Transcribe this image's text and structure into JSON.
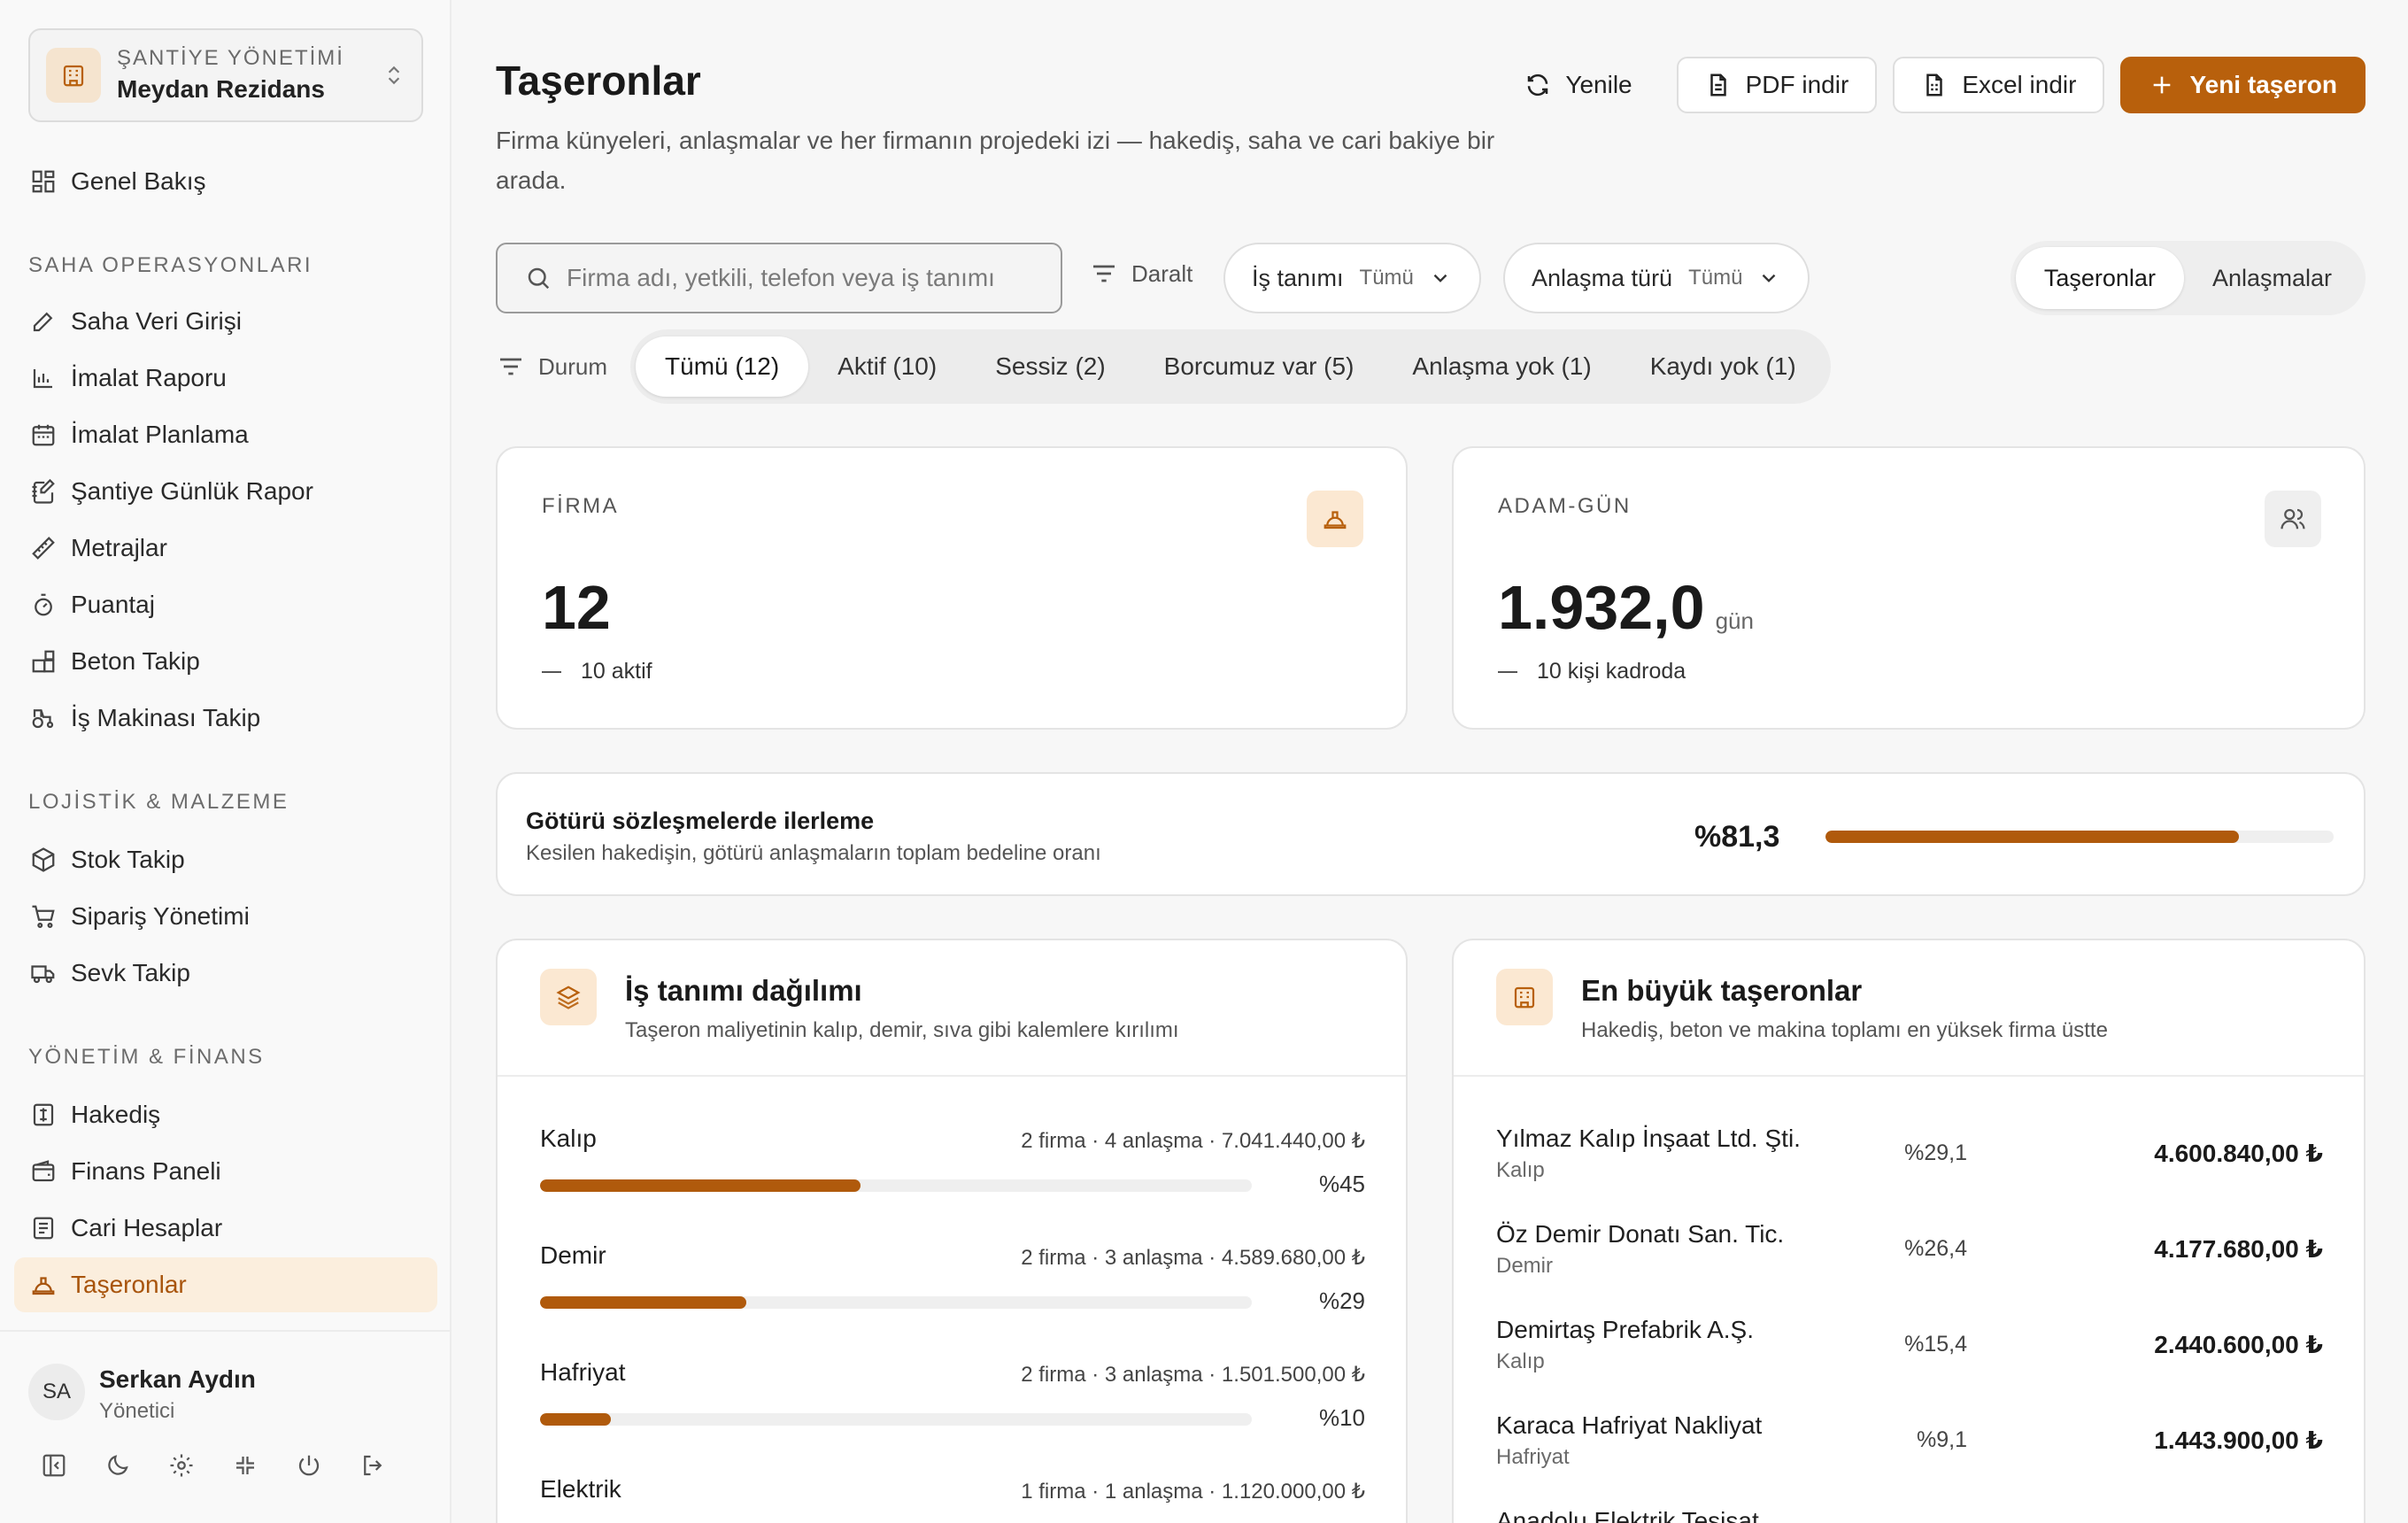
{
  "project": {
    "kicker": "ŞANTİYE YÖNETİMİ",
    "name": "Meydan Rezidans"
  },
  "nav": {
    "overview": "Genel Bakış",
    "section_ops": "SAHA OPERASYONLARI",
    "ops": [
      "Saha Veri Girişi",
      "İmalat Raporu",
      "İmalat Planlama",
      "Şantiye Günlük Rapor",
      "Metrajlar",
      "Puantaj",
      "Beton Takip",
      "İş Makinası Takip"
    ],
    "section_log": "LOJİSTİK & MALZEME",
    "log": [
      "Stok Takip",
      "Sipariş Yönetimi",
      "Sevk Takip"
    ],
    "section_fin": "YÖNETİM & FİNANS",
    "fin": [
      "Hakediş",
      "Finans Paneli",
      "Cari Hesaplar",
      "Taşeronlar"
    ]
  },
  "user": {
    "initials": "SA",
    "name": "Serkan Aydın",
    "role": "Yönetici"
  },
  "header": {
    "title": "Taşeronlar",
    "description": "Firma künyeleri, anlaşmalar ve her firmanın projedeki izi — hakediş, saha ve cari bakiye bir arada.",
    "refresh": "Yenile",
    "pdf": "PDF indir",
    "excel": "Excel indir",
    "new": "Yeni taşeron"
  },
  "filters": {
    "search_placeholder": "Firma adı, yetkili, telefon veya iş tanımı",
    "narrow": "Daralt",
    "job_label": "İş tanımı",
    "job_value": "Tümü",
    "deal_label": "Anlaşma türü",
    "deal_value": "Tümü",
    "view_tabs": [
      "Taşeronlar",
      "Anlaşmalar"
    ],
    "status_label": "Durum",
    "status_tabs": [
      "Tümü (12)",
      "Aktif (10)",
      "Sessiz (2)",
      "Borcumuz var (5)",
      "Anlaşma yok (1)",
      "Kaydı yok (1)"
    ]
  },
  "kpis": {
    "firms": {
      "kicker": "FİRMA",
      "value": "12",
      "sub": "10 aktif"
    },
    "mandays": {
      "kicker": "ADAM-GÜN",
      "value": "1.932,0",
      "unit": "gün",
      "sub": "10 kişi kadroda"
    }
  },
  "progress": {
    "title": "Götürü sözleşmelerde ilerleme",
    "subtitle": "Kesilen hakedişin, götürü anlaşmaların toplam bedeline oranı",
    "percent_label": "%81,3",
    "fraction": 0.813
  },
  "distribution": {
    "title": "İş tanımı dağılımı",
    "subtitle": "Taşeron maliyetinin kalıp, demir, sıva gibi kalemlere kırılımı",
    "rows": [
      {
        "name": "Kalıp",
        "meta": "2 firma · 4 anlaşma · 7.041.440,00 ₺",
        "pct_label": "%45",
        "fraction": 0.45
      },
      {
        "name": "Demir",
        "meta": "2 firma · 3 anlaşma · 4.589.680,00 ₺",
        "pct_label": "%29",
        "fraction": 0.29
      },
      {
        "name": "Hafriyat",
        "meta": "2 firma · 3 anlaşma · 1.501.500,00 ₺",
        "pct_label": "%10",
        "fraction": 0.1
      },
      {
        "name": "Elektrik",
        "meta": "1 firma · 1 anlaşma · 1.120.000,00 ₺"
      }
    ]
  },
  "top_contractors": {
    "title": "En büyük taşeronlar",
    "subtitle": "Hakediş, beton ve makina toplamı en yüksek firma üstte",
    "rows": [
      {
        "name": "Yılmaz Kalıp İnşaat Ltd. Şti.",
        "category": "Kalıp",
        "pct": "%29,1",
        "amount": "4.600.840,00 ₺"
      },
      {
        "name": "Öz Demir Donatı San. Tic.",
        "category": "Demir",
        "pct": "%26,4",
        "amount": "4.177.680,00 ₺"
      },
      {
        "name": "Demirtaş Prefabrik A.Ş.",
        "category": "Kalıp",
        "pct": "%15,4",
        "amount": "2.440.600,00 ₺"
      },
      {
        "name": "Karaca Hafriyat Nakliyat",
        "category": "Hafriyat",
        "pct": "%9,1",
        "amount": "1.443.900,00 ₺"
      },
      {
        "name": "Anadolu Elektrik Tesisat"
      }
    ]
  },
  "colors": {
    "accent": "#b8600c",
    "accent_soft": "#fbe8d2",
    "active_nav_bg": "#fbeedd"
  }
}
